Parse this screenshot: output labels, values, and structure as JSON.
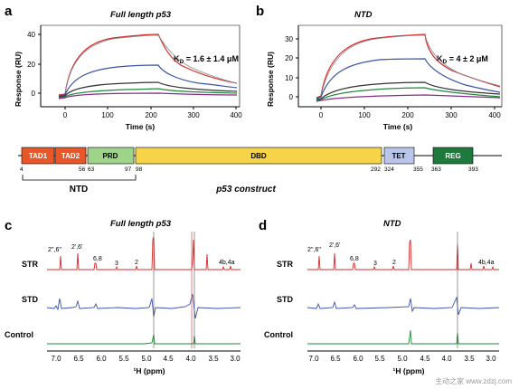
{
  "panels": {
    "a": {
      "letter": "a",
      "title": "Full length p53",
      "kd_label": "1.6 ± 1.4 μM",
      "y_label": "Response (RU)",
      "x_label": "Time (s)",
      "y_ticks": [
        "40",
        "20",
        "0"
      ],
      "x_ticks": [
        "0",
        "100",
        "200",
        "300",
        "400"
      ]
    },
    "b": {
      "letter": "b",
      "title": "NTD",
      "kd_label": "4 ± 2 μM",
      "y_label": "Response (RU)",
      "x_label": "Time (s)",
      "y_ticks": [
        "30",
        "20",
        "10",
        "0"
      ],
      "x_ticks": [
        "0",
        "100",
        "200",
        "300",
        "400"
      ]
    },
    "c": {
      "letter": "c",
      "title": "Full length p53",
      "rows": [
        "STR",
        "STD",
        "Control"
      ],
      "peaks": [
        "2'',6''",
        "2',6'",
        "6,8",
        "3",
        "2",
        "4b,4a"
      ],
      "x_label": "¹H (ppm)",
      "x_ticks": [
        "7.0",
        "6.5",
        "6.0",
        "5.5",
        "5.0",
        "4.5",
        "4.0",
        "3.5",
        "3.0"
      ]
    },
    "d": {
      "letter": "d",
      "title": "NTD",
      "rows": [
        "STR",
        "STD",
        "Control"
      ],
      "peaks": [
        "2'',6''",
        "2',6'",
        "6,8",
        "3",
        "2",
        "4b,4a"
      ],
      "x_label": "¹H (ppm)",
      "x_ticks": [
        "7.0",
        "6.5",
        "6.0",
        "5.5",
        "5.0",
        "4.5",
        "4.0",
        "3.5",
        "3.0"
      ]
    }
  },
  "kd_symbol": "K",
  "kd_sub": "D",
  "construct": {
    "title": "p53 construct",
    "ntd_label": "NTD",
    "domains": [
      {
        "label": "TAD1",
        "color": "#e8572a",
        "text_color": "#ffffff"
      },
      {
        "label": "TAD2",
        "color": "#e8572a",
        "text_color": "#ffffff"
      },
      {
        "label": "PRD",
        "color": "#9fd38a",
        "text_color": "#000000"
      },
      {
        "label": "DBD",
        "color": "#f5d44a",
        "text_color": "#000000"
      },
      {
        "label": "TET",
        "color": "#b9c6ea",
        "text_color": "#000000"
      },
      {
        "label": "REG",
        "color": "#1e7a3c",
        "text_color": "#ffffff"
      }
    ],
    "residues": [
      "4",
      "56",
      "63",
      "97",
      "98",
      "292",
      "324",
      "355",
      "363",
      "393"
    ]
  },
  "colors": {
    "red": "#d62a2a",
    "blue": "#3a52a8",
    "green": "#1e8a3a",
    "purple": "#8a2a8a",
    "dark": "#333333",
    "fit": "#888888"
  },
  "watermark": "主动之家 www.zdzj.com"
}
